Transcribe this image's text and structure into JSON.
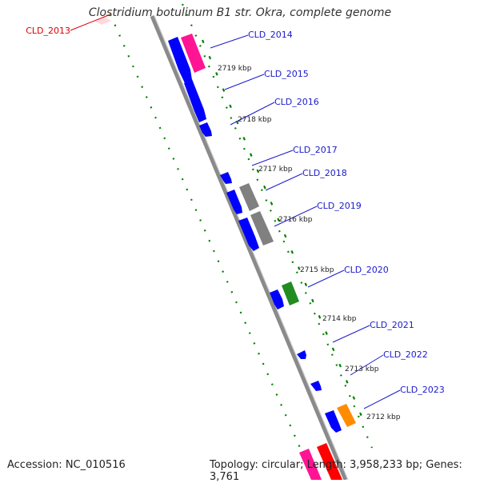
{
  "title": "Clostridium botulinum B1 str. Okra, complete genome",
  "footer": {
    "accession": "Accession: NC_010516",
    "summary": "Topology: circular; Length: 3,958,233 bp; Genes: 3,761"
  },
  "colors": {
    "blue": "#0000ff",
    "pink": "#ff1493",
    "gray": "#808080",
    "green": "#228b22",
    "orange": "#ff8c00",
    "red": "#ff0000",
    "ruler": "#008000",
    "label_blue": "#1a1acc",
    "label_red": "#dd0000"
  },
  "gene_labels": [
    {
      "id": "g2013",
      "text": "CLD_2013",
      "color": "red"
    },
    {
      "id": "g2014",
      "text": "CLD_2014",
      "color": "blue"
    },
    {
      "id": "g2015",
      "text": "CLD_2015",
      "color": "blue"
    },
    {
      "id": "g2016",
      "text": "CLD_2016",
      "color": "blue"
    },
    {
      "id": "g2017",
      "text": "CLD_2017",
      "color": "blue"
    },
    {
      "id": "g2018",
      "text": "CLD_2018",
      "color": "blue"
    },
    {
      "id": "g2019",
      "text": "CLD_2019",
      "color": "blue"
    },
    {
      "id": "g2020",
      "text": "CLD_2020",
      "color": "blue"
    },
    {
      "id": "g2021",
      "text": "CLD_2021",
      "color": "blue"
    },
    {
      "id": "g2022",
      "text": "CLD_2022",
      "color": "blue"
    },
    {
      "id": "g2023",
      "text": "CLD_2023",
      "color": "blue"
    }
  ],
  "ticks": [
    {
      "label": "2719 kbp",
      "value": 2719
    },
    {
      "label": "2718 kbp",
      "value": 2718
    },
    {
      "label": "2717 kbp",
      "value": 2717
    },
    {
      "label": "2716 kbp",
      "value": 2716
    },
    {
      "label": "2715 kbp",
      "value": 2715
    },
    {
      "label": "2714 kbp",
      "value": 2714
    },
    {
      "label": "2713 kbp",
      "value": 2713
    },
    {
      "label": "2712 kbp",
      "value": 2712
    }
  ],
  "genes": [
    {
      "strand": "reverse",
      "color": "blue"
    },
    {
      "strand": "forward",
      "color": "pink"
    },
    {
      "strand": "reverse",
      "color": "blue"
    },
    {
      "strand": "reverse",
      "color": "blue"
    },
    {
      "strand": "reverse",
      "color": "blue"
    },
    {
      "strand": "reverse",
      "color": "blue"
    },
    {
      "strand": "forward",
      "color": "gray"
    },
    {
      "strand": "reverse",
      "color": "blue"
    },
    {
      "strand": "forward",
      "color": "gray"
    },
    {
      "strand": "reverse",
      "color": "blue"
    },
    {
      "strand": "forward",
      "color": "green"
    },
    {
      "strand": "reverse",
      "color": "blue"
    },
    {
      "strand": "reverse",
      "color": "blue"
    },
    {
      "strand": "reverse",
      "color": "blue"
    },
    {
      "strand": "forward",
      "color": "orange"
    },
    {
      "strand": "forward",
      "color": "pink"
    },
    {
      "strand": "forward",
      "color": "red"
    },
    {
      "strand": "forward",
      "color": "pink"
    }
  ]
}
